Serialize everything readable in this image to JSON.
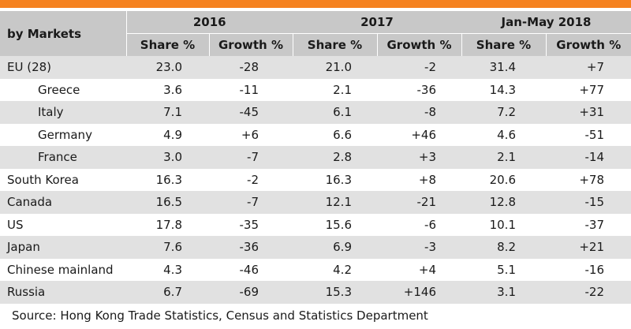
{
  "header": {
    "market_label": "by Markets",
    "years": [
      "2016",
      "2017",
      "Jan-May 2018"
    ],
    "share_label": "Share %",
    "growth_label": "Growth %"
  },
  "rows": [
    {
      "name": "EU (28)",
      "s2016": "23.0",
      "g2016": "-28",
      "s2017": "21.0",
      "g2017": "-2",
      "s2018": "31.4",
      "g2018": "+7"
    },
    {
      "name": "Greece",
      "s2016": "3.6",
      "g2016": "-11",
      "s2017": "2.1",
      "g2017": "-36",
      "s2018": "14.3",
      "g2018": "+77"
    },
    {
      "name": "Italy",
      "s2016": "7.1",
      "g2016": "-45",
      "s2017": "6.1",
      "g2017": "-8",
      "s2018": "7.2",
      "g2018": "+31"
    },
    {
      "name": "Germany",
      "s2016": "4.9",
      "g2016": "+6",
      "s2017": "6.6",
      "g2017": "+46",
      "s2018": "4.6",
      "g2018": "-51"
    },
    {
      "name": "France",
      "s2016": "3.0",
      "g2016": "-7",
      "s2017": "2.8",
      "g2017": "+3",
      "s2018": "2.1",
      "g2018": "-14"
    },
    {
      "name": "South Korea",
      "s2016": "16.3",
      "g2016": "-2",
      "s2017": "16.3",
      "g2017": "+8",
      "s2018": "20.6",
      "g2018": "+78"
    },
    {
      "name": "Canada",
      "s2016": "16.5",
      "g2016": "-7",
      "s2017": "12.1",
      "g2017": "-21",
      "s2018": "12.8",
      "g2018": "-15"
    },
    {
      "name": "US",
      "s2016": "17.8",
      "g2016": "-35",
      "s2017": "15.6",
      "g2017": "-6",
      "s2018": "10.1",
      "g2018": "-37"
    },
    {
      "name": "Japan",
      "s2016": "7.6",
      "g2016": "-36",
      "s2017": "6.9",
      "g2017": "-3",
      "s2018": "8.2",
      "g2018": "+21"
    },
    {
      "name": "Chinese mainland",
      "s2016": "4.3",
      "g2016": "-46",
      "s2017": "4.2",
      "g2017": "+4",
      "s2018": "5.1",
      "g2018": "-16"
    },
    {
      "name": "Russia",
      "s2016": "6.7",
      "g2016": "-69",
      "s2017": "15.3",
      "g2017": "+146",
      "s2018": "3.1",
      "g2018": "-22"
    }
  ],
  "source": "Source: Hong Kong Trade Statistics, Census and Statistics Department",
  "colors": {
    "accent_bar": "#f58220",
    "header_bg": "#c8c8c8",
    "shaded_row": "#e1e1e1"
  }
}
